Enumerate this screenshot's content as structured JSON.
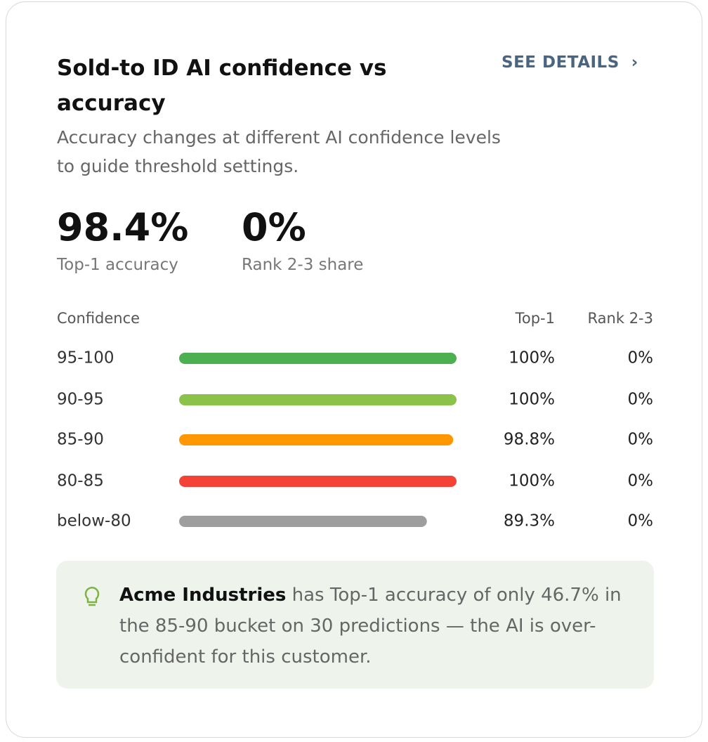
{
  "header": {
    "title": "Sold-to ID AI confidence vs accuracy",
    "subtitle": "Accuracy changes at different AI confidence levels to guide threshold settings.",
    "link": "SEE DETAILS"
  },
  "kpis": [
    {
      "value": "98.4%",
      "label": "Top-1 accuracy"
    },
    {
      "value": "0%",
      "label": "Rank 2-3 share"
    }
  ],
  "chart_data": {
    "type": "bar",
    "orientation": "horizontal",
    "category_header": "Confidence",
    "categories": [
      "95-100",
      "90-95",
      "85-90",
      "80-85",
      "below-80"
    ],
    "xlim": [
      0,
      100
    ],
    "series": [
      {
        "name": "Top-1",
        "values": [
          100,
          100,
          98.8,
          100,
          89.3
        ],
        "value_labels": [
          "100%",
          "100%",
          "98.8%",
          "100%",
          "89.3%"
        ],
        "colors": [
          "#4caf50",
          "#8bc34a",
          "#ff9800",
          "#f44336",
          "#9e9e9e"
        ]
      },
      {
        "name": "Rank 2-3",
        "values": [
          0,
          0,
          0,
          0,
          0
        ],
        "value_labels": [
          "0%",
          "0%",
          "0%",
          "0%",
          "0%"
        ]
      }
    ]
  },
  "insight": {
    "customer": "Acme Industries",
    "text": "has Top-1 accuracy of only 46.7% in the 85-90 bucket on 30 predictions — the AI is over-confident for this customer."
  }
}
